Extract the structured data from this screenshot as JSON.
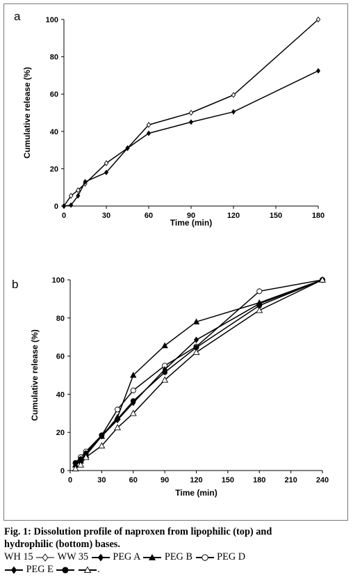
{
  "chart_data": [
    {
      "type": "line",
      "panel_label": "a",
      "xlabel": "Time (min)",
      "ylabel": "Cumulative release (%)",
      "xlim": [
        0,
        180
      ],
      "ylim": [
        0,
        100
      ],
      "xticks": [
        0,
        30,
        60,
        90,
        120,
        150,
        180
      ],
      "yticks": [
        0,
        20,
        40,
        60,
        80,
        100
      ],
      "grid": false,
      "series": [
        {
          "name": "WH 15",
          "marker": "diamond-open",
          "x": [
            0,
            5,
            10,
            15,
            30,
            45,
            60,
            90,
            120,
            180
          ],
          "y": [
            0,
            5.5,
            8.5,
            12,
            23,
            31,
            43.5,
            50,
            59.5,
            100
          ]
        },
        {
          "name": "WW 35",
          "marker": "diamond-filled",
          "x": [
            0,
            5,
            10,
            15,
            30,
            45,
            60,
            90,
            120,
            180
          ],
          "y": [
            0,
            0.5,
            5.5,
            13,
            18,
            31,
            39,
            45,
            50.5,
            72.5
          ]
        }
      ]
    },
    {
      "type": "line",
      "panel_label": "b",
      "xlabel": "Time (min)",
      "ylabel": "Cumulative release (%)",
      "xlim": [
        0,
        240
      ],
      "ylim": [
        0,
        100
      ],
      "xticks": [
        0,
        30,
        60,
        90,
        120,
        150,
        180,
        210,
        240
      ],
      "yticks": [
        0,
        20,
        40,
        60,
        80,
        100
      ],
      "grid": false,
      "series": [
        {
          "name": "PEG A",
          "marker": "triangle-filled",
          "x": [
            5,
            10,
            15,
            30,
            45,
            60,
            90,
            120,
            180,
            240
          ],
          "y": [
            3,
            5,
            8,
            18,
            28,
            50,
            65.5,
            78,
            88,
            100
          ]
        },
        {
          "name": "PEG B",
          "marker": "circle-open",
          "x": [
            5,
            10,
            15,
            30,
            45,
            60,
            90,
            120,
            180,
            240
          ],
          "y": [
            4,
            7,
            10,
            18.5,
            32,
            42,
            55,
            65,
            94,
            100
          ]
        },
        {
          "name": "PEG D",
          "marker": "diamond-filled",
          "x": [
            5,
            10,
            15,
            30,
            45,
            60,
            90,
            120,
            180,
            240
          ],
          "y": [
            3.5,
            6,
            9,
            18,
            26.5,
            35.5,
            53,
            68.5,
            87.5,
            100
          ]
        },
        {
          "name": "PEG E",
          "marker": "circle-filled",
          "x": [
            5,
            10,
            15,
            30,
            45,
            60,
            90,
            120,
            180,
            240
          ],
          "y": [
            4,
            6,
            9,
            18.5,
            27,
            36.5,
            51.5,
            64.5,
            86.5,
            100
          ]
        },
        {
          "name": "",
          "marker": "triangle-open",
          "x": [
            5,
            10,
            15,
            30,
            45,
            60,
            90,
            120,
            180,
            240
          ],
          "y": [
            1,
            3,
            7,
            13,
            22.5,
            30,
            47.5,
            62,
            84,
            100
          ]
        }
      ]
    }
  ],
  "caption": {
    "fig_label": "Fig. 1:",
    "line1": "Dissolution profile of naproxen from lipophilic (top) and",
    "line2": "hydrophilic (bottom) bases.",
    "legend": [
      {
        "label": "WH 15",
        "marker": "diamond-open"
      },
      {
        "label": "WW 35",
        "marker": "diamond-filled"
      },
      {
        "label": "PEG A",
        "marker": "triangle-filled"
      },
      {
        "label": "PEG B",
        "marker": "circle-open"
      },
      {
        "label": "PEG D",
        "marker": "diamond-filled"
      },
      {
        "label": "PEG E",
        "marker": "circle-filled"
      }
    ],
    "last_marker": "triangle-open",
    "end_punct": "."
  }
}
